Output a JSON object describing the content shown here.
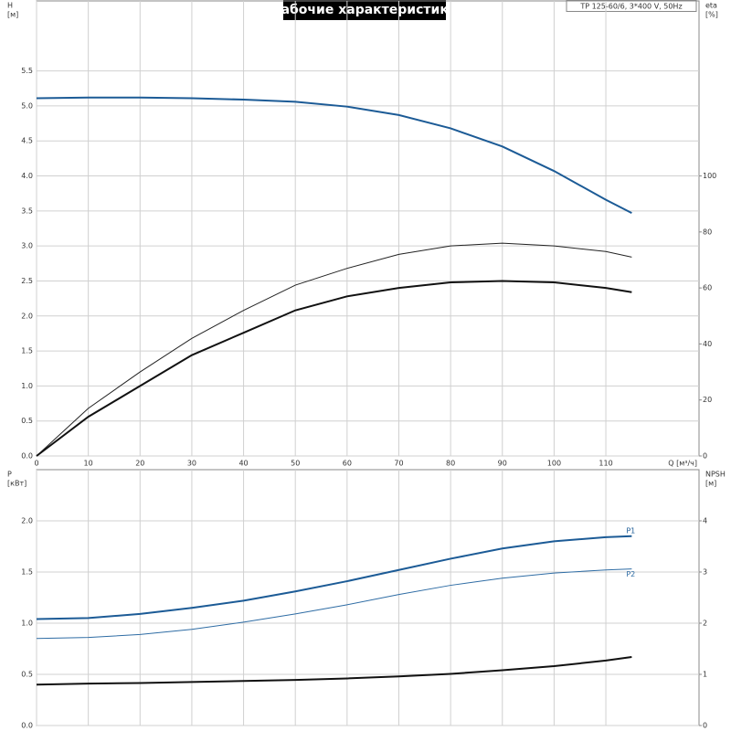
{
  "chart_data": [
    {
      "type": "line",
      "title": "Рабочие характеристики",
      "annotation": "TP 125-60/6, 3*400 V, 50Hz",
      "xlabel": "Q [м³/ч]",
      "ylabel": [
        "H",
        "[м]"
      ],
      "y2label": [
        "eta",
        "[%]"
      ],
      "x": [
        0,
        10,
        20,
        30,
        40,
        50,
        60,
        70,
        80,
        90,
        100,
        110,
        115
      ],
      "xlim": [
        0,
        128
      ],
      "xticks": [
        0,
        10,
        20,
        30,
        40,
        50,
        60,
        70,
        80,
        90,
        100,
        110
      ],
      "ylim": [
        0,
        6.5
      ],
      "yticks": [
        {
          "value": 0,
          "label": "0.0"
        },
        0.5,
        {
          "value": 1,
          "label": "1.0"
        },
        1.5,
        {
          "value": 2,
          "label": "2.0"
        },
        2.5,
        {
          "value": 3,
          "label": "3.0"
        },
        3.5,
        {
          "value": 4,
          "label": "4.0"
        },
        4.5,
        {
          "value": 5,
          "label": "5.0"
        },
        5.5
      ],
      "y2lim": [
        0,
        162.5
      ],
      "y2ticks": [
        0,
        20,
        40,
        60,
        80,
        100
      ],
      "grid": true,
      "series": [
        {
          "color": "#1c5b96",
          "line_width": 2,
          "values": [
            5.11,
            5.12,
            5.12,
            5.11,
            5.09,
            5.06,
            4.99,
            4.87,
            4.68,
            4.42,
            4.07,
            3.66,
            3.47
          ]
        },
        {
          "color": "#222222",
          "line_width": 1,
          "axis": "y2",
          "values": [
            0,
            17,
            30,
            42,
            52,
            61,
            67,
            72,
            75,
            76,
            75,
            73,
            71
          ]
        },
        {
          "color": "#111111",
          "line_width": 2,
          "axis": "y2",
          "values": [
            0,
            14,
            25,
            36,
            44,
            52,
            57,
            60,
            62,
            62.5,
            62,
            60,
            58.5
          ]
        }
      ]
    },
    {
      "type": "line",
      "ylabel": [
        "P",
        "[кВт]"
      ],
      "y2label": [
        "NPSH",
        "[м]"
      ],
      "x": [
        0,
        10,
        20,
        30,
        40,
        50,
        60,
        70,
        80,
        90,
        100,
        110,
        115
      ],
      "xlim": [
        0,
        128
      ],
      "xticks": [
        0,
        10,
        20,
        30,
        40,
        50,
        60,
        70,
        80,
        90,
        100,
        110
      ],
      "ylim": [
        0,
        2.5
      ],
      "yticks": [
        {
          "value": 0,
          "label": "0.0"
        },
        0.5,
        {
          "value": 1,
          "label": "1.0"
        },
        1.5,
        {
          "value": 2,
          "label": "2.0"
        }
      ],
      "y2lim": [
        0,
        5
      ],
      "y2ticks": [
        0,
        1,
        2,
        3,
        4
      ],
      "grid": true,
      "series": [
        {
          "name": "P1",
          "color": "#1c5b96",
          "line_width": 2,
          "values": [
            1.04,
            1.05,
            1.09,
            1.15,
            1.22,
            1.31,
            1.41,
            1.52,
            1.63,
            1.73,
            1.8,
            1.84,
            1.85
          ]
        },
        {
          "name": "P2",
          "color": "#2e6ca4",
          "line_width": 1,
          "values": [
            0.85,
            0.86,
            0.89,
            0.94,
            1.01,
            1.09,
            1.18,
            1.28,
            1.37,
            1.44,
            1.49,
            1.52,
            1.53
          ]
        },
        {
          "color": "#111111",
          "line_width": 2,
          "axis": "y2",
          "values": [
            0.8,
            0.82,
            0.83,
            0.85,
            0.87,
            0.89,
            0.92,
            0.96,
            1.01,
            1.08,
            1.16,
            1.27,
            1.34
          ]
        }
      ]
    }
  ]
}
